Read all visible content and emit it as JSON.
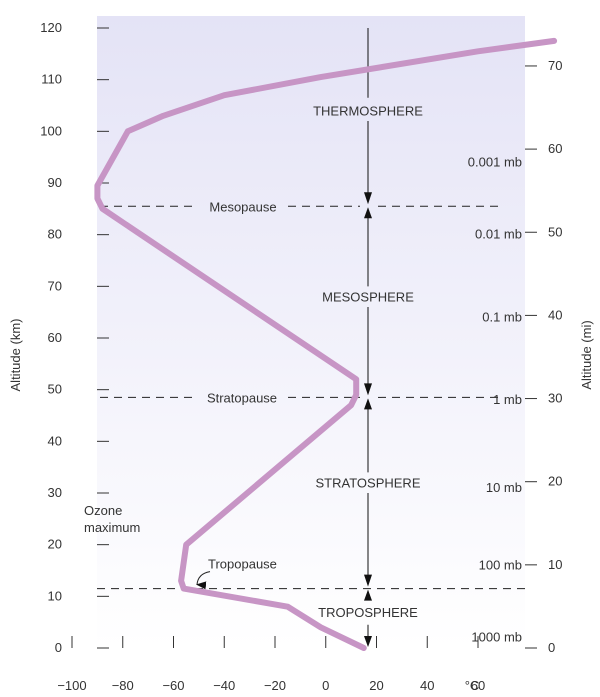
{
  "chart_data": {
    "type": "line",
    "title": "",
    "xlabel": "",
    "x_unit": "°C",
    "ylabel_left": "Altitude (km)",
    "ylabel_right": "Altitude (mi)",
    "xlim": [
      -100,
      80
    ],
    "ylim": [
      0,
      120
    ],
    "x_ticks": [
      -100,
      -80,
      -60,
      -40,
      -20,
      0,
      20,
      40,
      60
    ],
    "y_ticks_km": [
      0,
      10,
      20,
      30,
      40,
      50,
      60,
      70,
      80,
      90,
      100,
      110,
      120
    ],
    "y_ticks_mi": [
      0,
      10,
      20,
      30,
      40,
      50,
      60,
      70
    ],
    "grid": false,
    "series": [
      {
        "color": "#c795c5",
        "x": [
          15,
          -2,
          -15,
          -56,
          -57,
          -55,
          10,
          12,
          12,
          -88,
          -90,
          -90,
          -78,
          -64,
          -40,
          -2,
          60,
          90
        ],
        "y": [
          0,
          4,
          8,
          11.5,
          13,
          20,
          47,
          49,
          52,
          85,
          87,
          89.5,
          100,
          103,
          107,
          110.5,
          115.5,
          117.5
        ]
      }
    ],
    "layers": [
      {
        "label": "THERMOSPHERE",
        "y": 104
      },
      {
        "label": "MESOSPHERE",
        "y": 68
      },
      {
        "label": "STRATOSPHERE",
        "y": 32
      },
      {
        "label": "TROPOSPHERE",
        "y": 7
      }
    ],
    "pauses": [
      {
        "label": "Mesopause",
        "y": 85.5
      },
      {
        "label": "Stratopause",
        "y": 48.5
      },
      {
        "label": "Tropopause",
        "y": 11.5
      }
    ],
    "pressures": [
      {
        "label": "0.001 mb",
        "y": 94
      },
      {
        "label": "0.01 mb",
        "y": 80
      },
      {
        "label": "0.1 mb",
        "y": 64
      },
      {
        "label": "1 mb",
        "y": 48
      },
      {
        "label": "10 mb",
        "y": 31
      },
      {
        "label": "100 mb",
        "y": 16
      },
      {
        "label": "1000 mb",
        "y": 2
      }
    ],
    "annotations": [
      {
        "text": [
          "Ozone",
          "maximum"
        ],
        "x": -96,
        "y": 25
      }
    ],
    "background": {
      "top": "#e4e3f6",
      "bottom": "#ffffff"
    }
  }
}
